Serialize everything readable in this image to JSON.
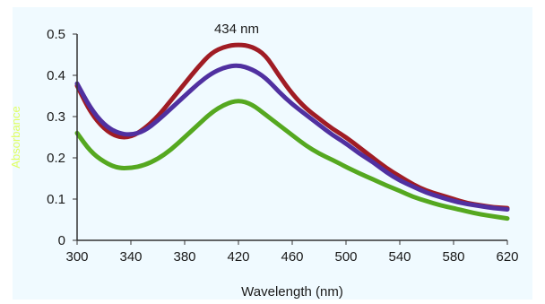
{
  "chart_data": {
    "type": "line",
    "title": "",
    "xlabel": "Wavelength (nm)",
    "ylabel": "Absorbance",
    "xlim": [
      300,
      620
    ],
    "ylim": [
      0,
      0.5
    ],
    "x_ticks": [
      300,
      340,
      380,
      420,
      460,
      500,
      540,
      580,
      620
    ],
    "y_ticks": [
      0,
      0.1,
      0.2,
      0.3,
      0.4,
      0.5
    ],
    "y_tick_labels": [
      "0",
      "0.1",
      "0.2",
      "0.3",
      "0.4",
      "0.5"
    ],
    "grid": false,
    "annotations": [
      {
        "text": "434 nm",
        "x": 420,
        "y": 0.5
      }
    ],
    "series": [
      {
        "color": "#a01c24",
        "x": [
          300,
          310,
          320,
          330,
          340,
          350,
          360,
          370,
          380,
          390,
          400,
          410,
          420,
          430,
          440,
          450,
          460,
          470,
          480,
          490,
          500,
          510,
          520,
          530,
          540,
          550,
          560,
          570,
          580,
          590,
          600,
          610,
          620
        ],
        "y": [
          0.375,
          0.31,
          0.27,
          0.25,
          0.25,
          0.27,
          0.3,
          0.34,
          0.38,
          0.42,
          0.455,
          0.47,
          0.475,
          0.47,
          0.45,
          0.4,
          0.355,
          0.32,
          0.295,
          0.27,
          0.25,
          0.225,
          0.2,
          0.175,
          0.155,
          0.135,
          0.12,
          0.11,
          0.1,
          0.09,
          0.085,
          0.08,
          0.078
        ]
      },
      {
        "color": "#5030a0",
        "x": [
          300,
          310,
          320,
          330,
          340,
          350,
          360,
          370,
          380,
          390,
          400,
          410,
          420,
          430,
          440,
          450,
          460,
          470,
          480,
          490,
          500,
          510,
          520,
          530,
          540,
          550,
          560,
          570,
          580,
          590,
          600,
          610,
          620
        ],
        "y": [
          0.38,
          0.32,
          0.28,
          0.26,
          0.255,
          0.265,
          0.29,
          0.32,
          0.35,
          0.38,
          0.405,
          0.42,
          0.425,
          0.415,
          0.395,
          0.36,
          0.33,
          0.305,
          0.28,
          0.255,
          0.235,
          0.21,
          0.19,
          0.165,
          0.145,
          0.13,
          0.115,
          0.105,
          0.095,
          0.088,
          0.083,
          0.078,
          0.075
        ]
      },
      {
        "color": "#55a820",
        "x": [
          300,
          310,
          320,
          330,
          340,
          350,
          360,
          370,
          380,
          390,
          400,
          410,
          420,
          430,
          440,
          450,
          460,
          470,
          480,
          490,
          500,
          510,
          520,
          530,
          540,
          550,
          560,
          570,
          580,
          590,
          600,
          610,
          620
        ],
        "y": [
          0.26,
          0.215,
          0.19,
          0.175,
          0.175,
          0.182,
          0.197,
          0.22,
          0.25,
          0.28,
          0.31,
          0.33,
          0.34,
          0.33,
          0.305,
          0.28,
          0.255,
          0.23,
          0.21,
          0.195,
          0.178,
          0.162,
          0.148,
          0.133,
          0.12,
          0.105,
          0.095,
          0.085,
          0.078,
          0.07,
          0.063,
          0.058,
          0.053
        ]
      }
    ],
    "colors": {
      "plot_background": "#f0faff",
      "axis": "#333333",
      "ylabel": "#e0ff60"
    }
  }
}
